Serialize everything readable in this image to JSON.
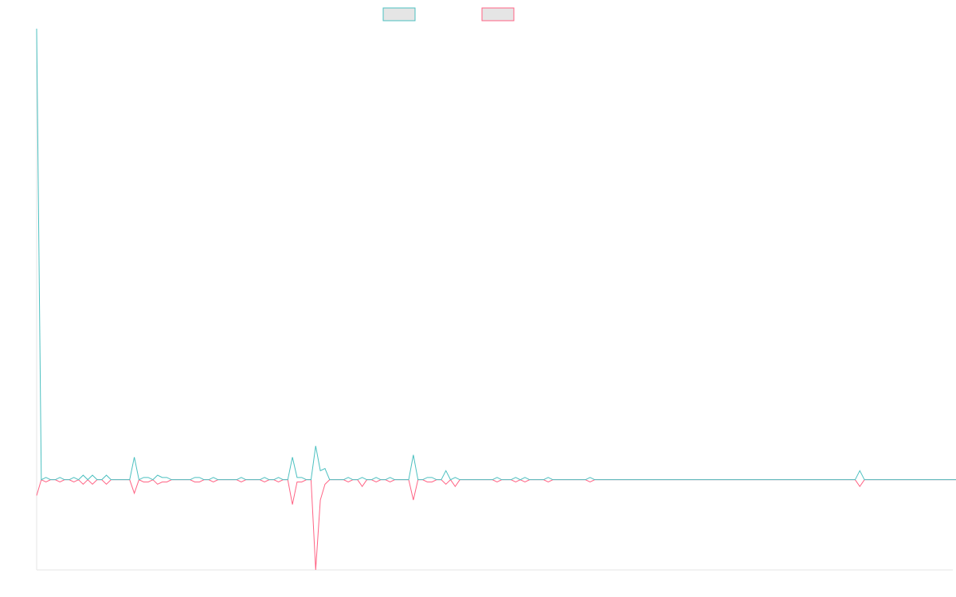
{
  "chart_data": {
    "type": "line",
    "title": "",
    "xlabel": "",
    "ylabel": "",
    "grid": false,
    "legend": "top-center",
    "x_range": [
      0,
      197
    ],
    "ylim": [
      -20,
      100
    ],
    "colors": {
      "series_a": "#4bc0c0",
      "series_b": "#ff6384",
      "legend_fill": "#e5e5e5",
      "axis": "#e6e6e6"
    },
    "series": [
      {
        "key": "a",
        "values": [
          100,
          0,
          0.5,
          0,
          0,
          0.5,
          0,
          0,
          0.5,
          0,
          1,
          0,
          1,
          0,
          0,
          1,
          0,
          0,
          0,
          0,
          0,
          5,
          0,
          0.5,
          0.5,
          0,
          1,
          0.5,
          0.5,
          0,
          0,
          0,
          0,
          0,
          0.5,
          0.5,
          0,
          0,
          0.5,
          0,
          0,
          0,
          0,
          0,
          0.5,
          0,
          0,
          0,
          0,
          0.5,
          0,
          0,
          0.5,
          0,
          0,
          5,
          0.5,
          0.5,
          0,
          0,
          7.5,
          2,
          2.5,
          0,
          0,
          0,
          0,
          0.5,
          0,
          0,
          0.5,
          0,
          0,
          0.5,
          0,
          0,
          0.5,
          0,
          0,
          0,
          0,
          5.5,
          0,
          0,
          0.5,
          0.5,
          0,
          0,
          2,
          0,
          0.5,
          0,
          0,
          0,
          0,
          0,
          0,
          0,
          0,
          0.5,
          0,
          0,
          0,
          0.5,
          0,
          0.5,
          0,
          0,
          0,
          0,
          0.5,
          0,
          0,
          0,
          0,
          0,
          0,
          0,
          0,
          0.5,
          0,
          0,
          0,
          0,
          0,
          0,
          0,
          0,
          0,
          0,
          0,
          0,
          0,
          0,
          0,
          0,
          0,
          0,
          0,
          0,
          0,
          0,
          0,
          0,
          0,
          0,
          0,
          0,
          0,
          0,
          0,
          0,
          0,
          0,
          0,
          0,
          0,
          0,
          0,
          0,
          0,
          0,
          0,
          0,
          0,
          0,
          0,
          0,
          0,
          0,
          0,
          0,
          0,
          0,
          0,
          0,
          0,
          2,
          0,
          0,
          0,
          0,
          0,
          0,
          0,
          0,
          0,
          0,
          0,
          0,
          0,
          0,
          0,
          0,
          0,
          0,
          0,
          0,
          0,
          0,
          0,
          0
        ]
      },
      {
        "key": "b",
        "values": [
          -3.5,
          0,
          -0.5,
          0,
          0,
          -0.5,
          0,
          0,
          -0.5,
          0,
          -1,
          0,
          -1,
          0,
          0,
          -1,
          0,
          0,
          0,
          0,
          0,
          -3,
          0,
          -0.5,
          -0.5,
          0,
          -1,
          -0.5,
          -0.5,
          0,
          0,
          0,
          0,
          0,
          -0.5,
          -0.5,
          0,
          0,
          -0.5,
          0,
          0,
          0,
          0,
          0,
          -0.5,
          0,
          0,
          0,
          0,
          -0.5,
          0,
          0,
          -0.5,
          0,
          0,
          -5.5,
          -0.5,
          -0.5,
          0,
          0,
          -20,
          -4.5,
          -1,
          0,
          0,
          0,
          0,
          -0.5,
          0,
          0,
          -1.5,
          0,
          0,
          -0.5,
          0,
          0,
          -0.5,
          0,
          0,
          0,
          0,
          -4.5,
          0,
          0,
          -0.5,
          -0.5,
          0,
          0,
          -1,
          0,
          -1.5,
          0,
          0,
          0,
          0,
          0,
          0,
          0,
          0,
          -0.5,
          0,
          0,
          0,
          -0.5,
          0,
          -0.5,
          0,
          0,
          0,
          0,
          -0.5,
          0,
          0,
          0,
          0,
          0,
          0,
          0,
          0,
          -0.5,
          0,
          0,
          0,
          0,
          0,
          0,
          0,
          0,
          0,
          0,
          0,
          0,
          0,
          0,
          0,
          0,
          0,
          0,
          0,
          0,
          0,
          0,
          0,
          0,
          0,
          0,
          0,
          0,
          0,
          0,
          0,
          0,
          0,
          0,
          0,
          0,
          0,
          0,
          0,
          0,
          0,
          0,
          0,
          0,
          0,
          0,
          0,
          0,
          0,
          0,
          0,
          0,
          0,
          0,
          0,
          0,
          0,
          -1.5,
          0,
          0,
          0,
          0,
          0,
          0,
          0,
          0,
          0,
          0,
          0,
          0,
          0,
          0,
          0,
          0,
          0,
          0,
          0,
          0,
          0,
          0,
          0,
          0
        ]
      }
    ]
  }
}
